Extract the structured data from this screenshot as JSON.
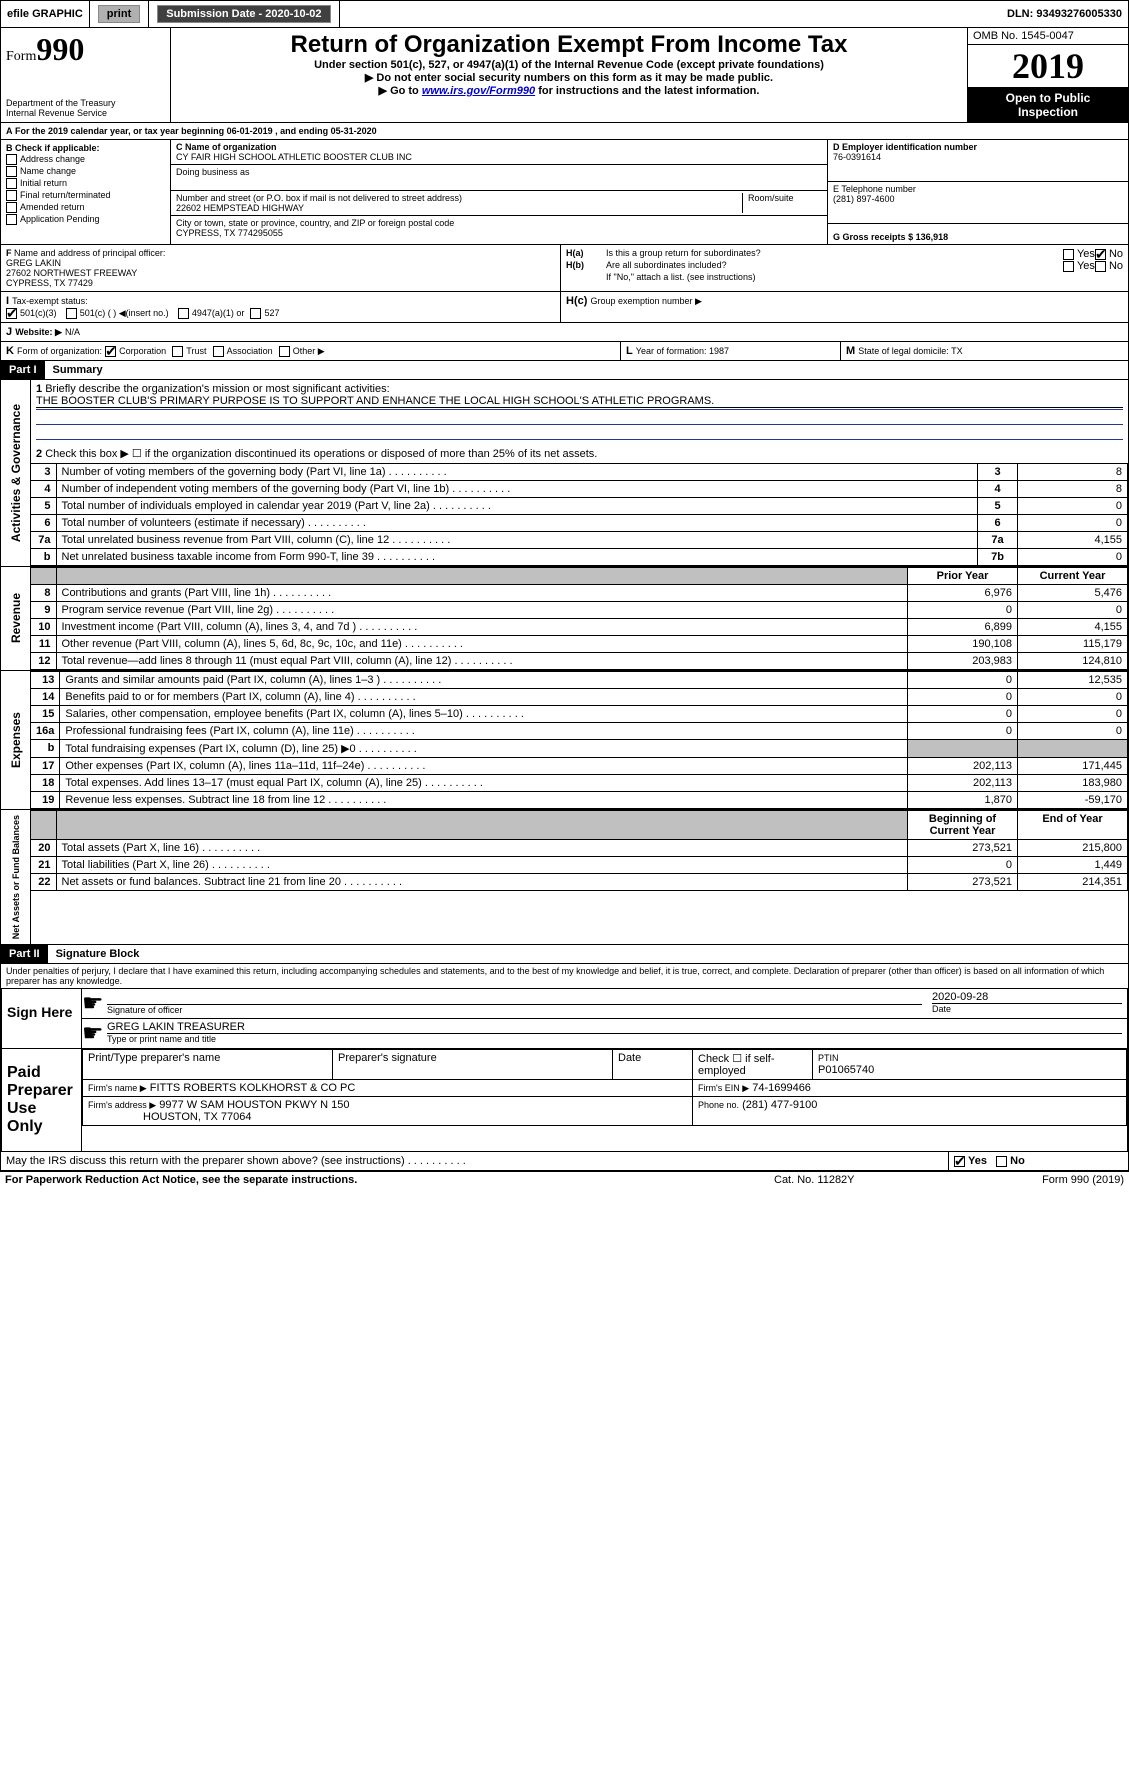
{
  "topbar": {
    "efile": "efile GRAPHIC",
    "print": "print",
    "subdate_label": "Submission Date - 2020-10-02",
    "dln": "DLN: 93493276005330"
  },
  "header": {
    "form_small": "Form",
    "form_num": "990",
    "dept1": "Department of the Treasury",
    "dept2": "Internal Revenue Service",
    "title": "Return of Organization Exempt From Income Tax",
    "under": "Under section 501(c), 527, or 4947(a)(1) of the Internal Revenue Code (except private foundations)",
    "nossn": "Do not enter social security numbers on this form as it may be made public.",
    "goto": "Go to ",
    "goto_link": "www.irs.gov/Form990",
    "goto_after": " for instructions and the latest information.",
    "omb": "OMB No. 1545-0047",
    "year": "2019",
    "open1": "Open to Public",
    "open2": "Inspection"
  },
  "sectionA": {
    "taxline": "For the 2019 calendar year, or tax year beginning 06-01-2019    , and ending 05-31-2020",
    "b_label": "Check if applicable:",
    "b_opts": [
      "Address change",
      "Name change",
      "Initial return",
      "Final return/terminated",
      "Amended return",
      "Application Pending"
    ],
    "c_label": "Name of organization",
    "c_name": "CY FAIR HIGH SCHOOL ATHLETIC BOOSTER CLUB INC",
    "dba_label": "Doing business as",
    "addr_label": "Number and street (or P.O. box if mail is not delivered to street address)",
    "room_label": "Room/suite",
    "addr": "22602 HEMPSTEAD HIGHWAY",
    "city_label": "City or town, state or province, country, and ZIP or foreign postal code",
    "city": "CYPRESS, TX  774295055",
    "d_label": "Employer identification number",
    "d_ein": "76-0391614",
    "e_label": "E Telephone number",
    "e_phone": "(281) 897-4600",
    "g_label": "Gross receipts $ 136,918",
    "f_label": "Name and address of principal officer:",
    "f_name": "GREG LAKIN",
    "f_addr1": "27602 NORTHWEST FREEWAY",
    "f_addr2": "CYPRESS, TX  77429",
    "ha_label": "Is this a group return for subordinates?",
    "hb_label": "Are all subordinates included?",
    "hb_note": "If \"No,\" attach a list. (see instructions)",
    "hc_label": "Group exemption number ▶",
    "i_label": "Tax-exempt status:",
    "i_501c3": "501(c)(3)",
    "i_501c": "501(c) (   ) ◀(insert no.)",
    "i_4947": "4947(a)(1) or",
    "i_527": "527",
    "j_label": "Website: ▶",
    "j_val": "N/A",
    "k_label": "Form of organization:",
    "k_opts": [
      "Corporation",
      "Trust",
      "Association",
      "Other ▶"
    ],
    "l_label": "Year of formation: 1987",
    "m_label": "State of legal domicile: TX"
  },
  "part1": {
    "hdr": "Part I",
    "title": "Summary",
    "side_gov": "Activities & Governance",
    "side_rev": "Revenue",
    "side_exp": "Expenses",
    "side_net": "Net Assets or Fund Balances",
    "l1_label": "Briefly describe the organization's mission or most significant activities:",
    "l1_val": "THE BOOSTER CLUB'S PRIMARY PURPOSE IS TO SUPPORT AND ENHANCE THE LOCAL HIGH SCHOOL'S ATHLETIC PROGRAMS.",
    "l2": "Check this box ▶ ☐  if the organization discontinued its operations or disposed of more than 25% of its net assets.",
    "rows_gov": [
      {
        "n": "3",
        "d": "Number of voting members of the governing body (Part VI, line 1a)",
        "b": "3",
        "v": "8"
      },
      {
        "n": "4",
        "d": "Number of independent voting members of the governing body (Part VI, line 1b)",
        "b": "4",
        "v": "8"
      },
      {
        "n": "5",
        "d": "Total number of individuals employed in calendar year 2019 (Part V, line 2a)",
        "b": "5",
        "v": "0"
      },
      {
        "n": "6",
        "d": "Total number of volunteers (estimate if necessary)",
        "b": "6",
        "v": "0"
      },
      {
        "n": "7a",
        "d": "Total unrelated business revenue from Part VIII, column (C), line 12",
        "b": "7a",
        "v": "4,155"
      },
      {
        "n": "b",
        "d": "Net unrelated business taxable income from Form 990-T, line 39",
        "b": "7b",
        "v": "0"
      }
    ],
    "hdr_prior": "Prior Year",
    "hdr_curr": "Current Year",
    "rows_rev": [
      {
        "n": "8",
        "d": "Contributions and grants (Part VIII, line 1h)",
        "p": "6,976",
        "c": "5,476"
      },
      {
        "n": "9",
        "d": "Program service revenue (Part VIII, line 2g)",
        "p": "0",
        "c": "0"
      },
      {
        "n": "10",
        "d": "Investment income (Part VIII, column (A), lines 3, 4, and 7d )",
        "p": "6,899",
        "c": "4,155"
      },
      {
        "n": "11",
        "d": "Other revenue (Part VIII, column (A), lines 5, 6d, 8c, 9c, 10c, and 11e)",
        "p": "190,108",
        "c": "115,179"
      },
      {
        "n": "12",
        "d": "Total revenue—add lines 8 through 11 (must equal Part VIII, column (A), line 12)",
        "p": "203,983",
        "c": "124,810"
      }
    ],
    "rows_exp": [
      {
        "n": "13",
        "d": "Grants and similar amounts paid (Part IX, column (A), lines 1–3 )",
        "p": "0",
        "c": "12,535"
      },
      {
        "n": "14",
        "d": "Benefits paid to or for members (Part IX, column (A), line 4)",
        "p": "0",
        "c": "0"
      },
      {
        "n": "15",
        "d": "Salaries, other compensation, employee benefits (Part IX, column (A), lines 5–10)",
        "p": "0",
        "c": "0"
      },
      {
        "n": "16a",
        "d": "Professional fundraising fees (Part IX, column (A), line 11e)",
        "p": "0",
        "c": "0"
      },
      {
        "n": "b",
        "d": "Total fundraising expenses (Part IX, column (D), line 25) ▶0",
        "p": "",
        "c": "",
        "shade": true
      },
      {
        "n": "17",
        "d": "Other expenses (Part IX, column (A), lines 11a–11d, 11f–24e)",
        "p": "202,113",
        "c": "171,445"
      },
      {
        "n": "18",
        "d": "Total expenses. Add lines 13–17 (must equal Part IX, column (A), line 25)",
        "p": "202,113",
        "c": "183,980"
      },
      {
        "n": "19",
        "d": "Revenue less expenses. Subtract line 18 from line 12",
        "p": "1,870",
        "c": "-59,170"
      }
    ],
    "hdr_beg": "Beginning of Current Year",
    "hdr_end": "End of Year",
    "rows_net": [
      {
        "n": "20",
        "d": "Total assets (Part X, line 16)",
        "p": "273,521",
        "c": "215,800"
      },
      {
        "n": "21",
        "d": "Total liabilities (Part X, line 26)",
        "p": "0",
        "c": "1,449"
      },
      {
        "n": "22",
        "d": "Net assets or fund balances. Subtract line 21 from line 20",
        "p": "273,521",
        "c": "214,351"
      }
    ]
  },
  "part2": {
    "hdr": "Part II",
    "title": "Signature Block",
    "decl": "Under penalties of perjury, I declare that I have examined this return, including accompanying schedules and statements, and to the best of my knowledge and belief, it is true, correct, and complete. Declaration of preparer (other than officer) is based on all information of which preparer has any knowledge.",
    "sign_here": "Sign Here",
    "sig_officer": "Signature of officer",
    "sig_date": "2020-09-28",
    "sig_date_lbl": "Date",
    "sig_name": "GREG LAKIN  TREASURER",
    "sig_name_lbl": "Type or print name and title",
    "paid": "Paid Preparer Use Only",
    "prep_name_lbl": "Print/Type preparer's name",
    "prep_sig_lbl": "Preparer's signature",
    "prep_date_lbl": "Date",
    "prep_check": "Check ☐ if self-employed",
    "ptin_lbl": "PTIN",
    "ptin": "P01065740",
    "firm_name_lbl": "Firm's name    ▶",
    "firm_name": "FITTS ROBERTS KOLKHORST & CO PC",
    "firm_ein_lbl": "Firm's EIN ▶",
    "firm_ein": "74-1699466",
    "firm_addr_lbl": "Firm's address ▶",
    "firm_addr1": "9977 W SAM HOUSTON PKWY N 150",
    "firm_addr2": "HOUSTON, TX  77064",
    "firm_phone_lbl": "Phone no.",
    "firm_phone": "(281) 477-9100",
    "discuss": "May the IRS discuss this return with the preparer shown above? (see instructions)",
    "pra": "For Paperwork Reduction Act Notice, see the separate instructions.",
    "cat": "Cat. No. 11282Y",
    "formno": "Form 990 (2019)"
  }
}
